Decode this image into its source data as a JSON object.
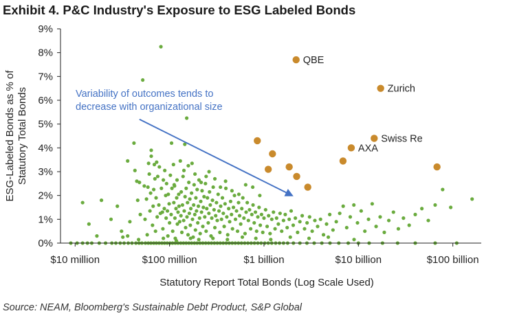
{
  "header": {
    "title": "Exhibit 4. P&C Industry's Exposure to ESG Labeled Bonds"
  },
  "footer": {
    "source": "Source: NEAM, Bloomberg's Sustainable Debt Product, S&P Global"
  },
  "colors": {
    "industry_points": "#6aab3e",
    "named_insurers": "#c98a2c",
    "annotation": "#4472c4",
    "axis": "#222222",
    "text": "#222222"
  },
  "chart_data": {
    "type": "scatter",
    "title": "Exhibit 4. P&C Industry's Exposure to ESG Labeled Bonds",
    "xlabel": "Statutory Report Total Bonds (Log Scale Used)",
    "ylabel": "ESG-Labeled Bonds as % of Statutory Total Bonds",
    "x_scale": "log",
    "xlim": [
      7000000,
      200000000000
    ],
    "ylim": [
      0,
      9
    ],
    "x_ticks": [
      {
        "value": 10000000,
        "label": "$10 million"
      },
      {
        "value": 100000000,
        "label": "$100 million"
      },
      {
        "value": 1000000000,
        "label": "$1 billion"
      },
      {
        "value": 10000000000,
        "label": "$10 billion"
      },
      {
        "value": 100000000000,
        "label": "$100 billion"
      }
    ],
    "y_ticks": [
      {
        "value": 0,
        "label": "0%"
      },
      {
        "value": 1,
        "label": "1%"
      },
      {
        "value": 2,
        "label": "2%"
      },
      {
        "value": 3,
        "label": "3%"
      },
      {
        "value": 4,
        "label": "4%"
      },
      {
        "value": 5,
        "label": "5%"
      },
      {
        "value": 6,
        "label": "6%"
      },
      {
        "value": 7,
        "label": "7%"
      },
      {
        "value": 8,
        "label": "8%"
      },
      {
        "value": 9,
        "label": "9%"
      }
    ],
    "grid": false,
    "annotation": {
      "text_lines": [
        "Variability of outcomes tends to",
        "decrease with organizational size"
      ],
      "arrow_from": {
        "x": 48000000,
        "y": 5.2
      },
      "arrow_to": {
        "x": 1980000000,
        "y": 2.0
      }
    },
    "highlighted": [
      {
        "label": "QBE",
        "x": 2190000000,
        "y": 7.7
      },
      {
        "label": "Zurich",
        "x": 17200000000,
        "y": 6.5
      },
      {
        "label": "Swiss Re",
        "x": 14700000000,
        "y": 4.4
      },
      {
        "label": "AXA",
        "x": 8400000000,
        "y": 4.0
      },
      {
        "label": "",
        "x": 850000000,
        "y": 4.3
      },
      {
        "label": "",
        "x": 1230000000,
        "y": 3.75
      },
      {
        "label": "",
        "x": 1110000000,
        "y": 3.1
      },
      {
        "label": "",
        "x": 1850000000,
        "y": 3.2
      },
      {
        "label": "",
        "x": 2220000000,
        "y": 2.8
      },
      {
        "label": "",
        "x": 2910000000,
        "y": 2.35
      },
      {
        "label": "",
        "x": 6870000000,
        "y": 3.45
      },
      {
        "label": "",
        "x": 68000000000,
        "y": 3.2
      }
    ],
    "industry_points": [
      [
        12000000,
        1.7
      ],
      [
        14000000,
        0.8
      ],
      [
        17000000,
        0.3
      ],
      [
        19000000,
        1.8
      ],
      [
        24000000,
        1.0
      ],
      [
        28000000,
        1.55
      ],
      [
        31000000,
        0.5
      ],
      [
        36000000,
        0.3
      ],
      [
        38000000,
        0.9
      ],
      [
        42000000,
        4.2
      ],
      [
        43000000,
        3.05
      ],
      [
        45000000,
        2.6
      ],
      [
        46000000,
        1.8
      ],
      [
        49000000,
        1.2
      ],
      [
        52000000,
        6.85
      ],
      [
        54000000,
        2.4
      ],
      [
        55000000,
        1.0
      ],
      [
        57000000,
        1.85
      ],
      [
        58000000,
        0.35
      ],
      [
        60000000,
        3.35
      ],
      [
        61000000,
        2.9
      ],
      [
        62000000,
        1.35
      ],
      [
        63000000,
        2.1
      ],
      [
        64000000,
        3.65
      ],
      [
        66000000,
        0.75
      ],
      [
        67000000,
        1.55
      ],
      [
        68000000,
        2.25
      ],
      [
        69000000,
        3.3
      ],
      [
        71000000,
        0.5
      ],
      [
        72000000,
        1.9
      ],
      [
        73000000,
        3.4
      ],
      [
        74000000,
        1.1
      ],
      [
        75000000,
        2.8
      ],
      [
        77000000,
        1.6
      ],
      [
        78000000,
        3.2
      ],
      [
        80000000,
        1.25
      ],
      [
        81000000,
        8.25
      ],
      [
        82000000,
        2.3
      ],
      [
        84000000,
        1.3
      ],
      [
        85000000,
        0.6
      ],
      [
        86000000,
        2.65
      ],
      [
        88000000,
        1.45
      ],
      [
        89000000,
        3.05
      ],
      [
        91000000,
        2.0
      ],
      [
        92000000,
        1.05
      ],
      [
        93000000,
        2.5
      ],
      [
        95000000,
        1.35
      ],
      [
        96000000,
        0.3
      ],
      [
        97000000,
        2.05
      ],
      [
        99000000,
        1.65
      ],
      [
        100000000,
        0.85
      ],
      [
        102000000,
        2.85
      ],
      [
        104000000,
        1.2
      ],
      [
        105000000,
        4.2
      ],
      [
        106000000,
        2.3
      ],
      [
        108000000,
        0.5
      ],
      [
        110000000,
        3.3
      ],
      [
        111000000,
        1.7
      ],
      [
        113000000,
        2.4
      ],
      [
        114000000,
        1.05
      ],
      [
        115000000,
        0.2
      ],
      [
        117000000,
        1.45
      ],
      [
        119000000,
        1.9
      ],
      [
        120000000,
        2.65
      ],
      [
        121000000,
        0.8
      ],
      [
        123000000,
        1.3
      ],
      [
        125000000,
        2.05
      ],
      [
        126000000,
        1.55
      ],
      [
        128000000,
        0.9
      ],
      [
        130000000,
        3.45
      ],
      [
        132000000,
        1.15
      ],
      [
        133000000,
        2.15
      ],
      [
        135000000,
        0.45
      ],
      [
        137000000,
        1.6
      ],
      [
        139000000,
        2.8
      ],
      [
        141000000,
        0.95
      ],
      [
        143000000,
        1.35
      ],
      [
        145000000,
        4.15
      ],
      [
        146000000,
        1.95
      ],
      [
        148000000,
        0.65
      ],
      [
        150000000,
        2.3
      ],
      [
        152000000,
        5.25
      ],
      [
        153000000,
        1.1
      ],
      [
        155000000,
        1.7
      ],
      [
        157000000,
        0.35
      ],
      [
        160000000,
        2.55
      ],
      [
        162000000,
        1.25
      ],
      [
        164000000,
        1.85
      ],
      [
        166000000,
        0.75
      ],
      [
        168000000,
        1.45
      ],
      [
        171000000,
        2.1
      ],
      [
        173000000,
        3.35
      ],
      [
        175000000,
        1.0
      ],
      [
        178000000,
        0.25
      ],
      [
        180000000,
        1.6
      ],
      [
        182000000,
        2.45
      ],
      [
        185000000,
        1.2
      ],
      [
        188000000,
        0.55
      ],
      [
        190000000,
        1.9
      ],
      [
        193000000,
        1.35
      ],
      [
        196000000,
        2.25
      ],
      [
        199000000,
        0.85
      ],
      [
        202000000,
        1.55
      ],
      [
        205000000,
        2.65
      ],
      [
        208000000,
        1.05
      ],
      [
        211000000,
        0.4
      ],
      [
        214000000,
        1.75
      ],
      [
        218000000,
        1.3
      ],
      [
        221000000,
        2.2
      ],
      [
        225000000,
        0.7
      ],
      [
        228000000,
        1.5
      ],
      [
        232000000,
        1.95
      ],
      [
        236000000,
        1.1
      ],
      [
        240000000,
        2.5
      ],
      [
        244000000,
        0.5
      ],
      [
        248000000,
        1.45
      ],
      [
        252000000,
        1.9
      ],
      [
        257000000,
        0.85
      ],
      [
        261000000,
        1.25
      ],
      [
        265000000,
        2.15
      ],
      [
        270000000,
        1.6
      ],
      [
        275000000,
        0.3
      ],
      [
        280000000,
        1.05
      ],
      [
        285000000,
        1.8
      ],
      [
        290000000,
        2.35
      ],
      [
        296000000,
        1.4
      ],
      [
        302000000,
        0.65
      ],
      [
        308000000,
        1.15
      ],
      [
        314000000,
        1.7
      ],
      [
        320000000,
        0.95
      ],
      [
        327000000,
        2.05
      ],
      [
        334000000,
        1.35
      ],
      [
        341000000,
        0.45
      ],
      [
        348000000,
        1.55
      ],
      [
        355000000,
        1.0
      ],
      [
        363000000,
        1.9
      ],
      [
        371000000,
        1.25
      ],
      [
        379000000,
        0.7
      ],
      [
        387000000,
        1.65
      ],
      [
        395000000,
        2.3
      ],
      [
        404000000,
        1.1
      ],
      [
        413000000,
        0.35
      ],
      [
        423000000,
        1.45
      ],
      [
        433000000,
        0.9
      ],
      [
        443000000,
        1.75
      ],
      [
        453000000,
        1.2
      ],
      [
        464000000,
        0.6
      ],
      [
        475000000,
        1.5
      ],
      [
        487000000,
        2.0
      ],
      [
        499000000,
        1.0
      ],
      [
        512000000,
        1.35
      ],
      [
        525000000,
        0.5
      ],
      [
        538000000,
        1.7
      ],
      [
        552000000,
        1.15
      ],
      [
        567000000,
        0.8
      ],
      [
        582000000,
        1.45
      ],
      [
        597000000,
        1.9
      ],
      [
        613000000,
        1.05
      ],
      [
        630000000,
        0.4
      ],
      [
        647000000,
        1.3
      ],
      [
        665000000,
        1.7
      ],
      [
        684000000,
        0.95
      ],
      [
        703000000,
        1.4
      ],
      [
        723000000,
        0.6
      ],
      [
        744000000,
        1.2
      ],
      [
        766000000,
        1.6
      ],
      [
        788000000,
        0.85
      ],
      [
        812000000,
        1.3
      ],
      [
        836000000,
        0.5
      ],
      [
        861000000,
        1.1
      ],
      [
        887000000,
        1.5
      ],
      [
        914000000,
        0.75
      ],
      [
        942000000,
        1.2
      ],
      [
        971000000,
        0.45
      ],
      [
        1000000000,
        1.05
      ],
      [
        1040000000,
        1.4
      ],
      [
        1080000000,
        0.7
      ],
      [
        1120000000,
        1.15
      ],
      [
        1160000000,
        0.4
      ],
      [
        1210000000,
        1.0
      ],
      [
        1260000000,
        1.3
      ],
      [
        1310000000,
        0.6
      ],
      [
        1360000000,
        1.05
      ],
      [
        1420000000,
        0.8
      ],
      [
        1480000000,
        1.25
      ],
      [
        1540000000,
        0.5
      ],
      [
        1610000000,
        0.95
      ],
      [
        1680000000,
        1.2
      ],
      [
        1760000000,
        0.65
      ],
      [
        1850000000,
        1.0
      ],
      [
        1940000000,
        1.35
      ],
      [
        2040000000,
        0.75
      ],
      [
        2150000000,
        1.05
      ],
      [
        2270000000,
        0.45
      ],
      [
        2400000000,
        0.9
      ],
      [
        2540000000,
        1.15
      ],
      [
        2690000000,
        0.6
      ],
      [
        2860000000,
        0.85
      ],
      [
        3040000000,
        1.1
      ],
      [
        3240000000,
        0.5
      ],
      [
        3460000000,
        0.95
      ],
      [
        3700000000,
        0.7
      ],
      [
        3970000000,
        1.0
      ],
      [
        4270000000,
        0.35
      ],
      [
        4600000000,
        0.8
      ],
      [
        4970000000,
        1.2
      ],
      [
        5380000000,
        0.55
      ],
      [
        5830000000,
        0.9
      ],
      [
        6340000000,
        1.25
      ],
      [
        6900000000,
        1.55
      ],
      [
        7520000000,
        0.65
      ],
      [
        8200000000,
        1.1
      ],
      [
        8950000000,
        1.6
      ],
      [
        9780000000,
        0.85
      ],
      [
        10700000000,
        1.35
      ],
      [
        11700000000,
        0.5
      ],
      [
        12800000000,
        1.0
      ],
      [
        14000000000,
        1.65
      ],
      [
        15400000000,
        0.7
      ],
      [
        17000000000,
        1.1
      ],
      [
        18800000000,
        0.45
      ],
      [
        21000000000,
        0.95
      ],
      [
        23500000000,
        1.3
      ],
      [
        26500000000,
        0.6
      ],
      [
        30000000000,
        1.05
      ],
      [
        34500000000,
        0.75
      ],
      [
        40000000000,
        1.2
      ],
      [
        47000000000,
        1.45
      ],
      [
        55000000000,
        0.95
      ],
      [
        65000000000,
        1.6
      ],
      [
        78000000000,
        2.25
      ],
      [
        95000000000,
        1.5
      ],
      [
        160000000000,
        1.85
      ],
      [
        36000000,
        3.45
      ],
      [
        64000000,
        3.9
      ],
      [
        48000000,
        2.55
      ],
      [
        59000000,
        2.35
      ],
      [
        70000000,
        2.7
      ],
      [
        112000000,
        2.45
      ],
      [
        142000000,
        3.05
      ],
      [
        158000000,
        3.25
      ],
      [
        186000000,
        2.9
      ],
      [
        216000000,
        2.55
      ],
      [
        244000000,
        2.8
      ],
      [
        262000000,
        3.0
      ],
      [
        302000000,
        2.7
      ],
      [
        346000000,
        2.35
      ],
      [
        392000000,
        2.6
      ],
      [
        458000000,
        2.2
      ],
      [
        542000000,
        2.05
      ],
      [
        640000000,
        2.45
      ],
      [
        760000000,
        2.35
      ],
      [
        903000000,
        2.0
      ],
      [
        9000000,
        0
      ],
      [
        10500000,
        0
      ],
      [
        12000000,
        0
      ],
      [
        13500000,
        0
      ],
      [
        15000000,
        0
      ],
      [
        18000000,
        0
      ],
      [
        21000000,
        0
      ],
      [
        24500000,
        0
      ],
      [
        27000000,
        0
      ],
      [
        30000000,
        0
      ],
      [
        33000000,
        0
      ],
      [
        36500000,
        0
      ],
      [
        40000000,
        0
      ],
      [
        44000000,
        0
      ],
      [
        47500000,
        0
      ],
      [
        51000000,
        0
      ],
      [
        55500000,
        0
      ],
      [
        59500000,
        0
      ],
      [
        63500000,
        0
      ],
      [
        68000000,
        0
      ],
      [
        72500000,
        0
      ],
      [
        77500000,
        0
      ],
      [
        83000000,
        0
      ],
      [
        88500000,
        0
      ],
      [
        94500000,
        0
      ],
      [
        101000000,
        0
      ],
      [
        107500000,
        0
      ],
      [
        115000000,
        0
      ],
      [
        123000000,
        0
      ],
      [
        131500000,
        0
      ],
      [
        140500000,
        0
      ],
      [
        150000000,
        0
      ],
      [
        160500000,
        0
      ],
      [
        171500000,
        0
      ],
      [
        183500000,
        0
      ],
      [
        196000000,
        0
      ],
      [
        210000000,
        0
      ],
      [
        225000000,
        0
      ],
      [
        241500000,
        0
      ],
      [
        259000000,
        0
      ],
      [
        278000000,
        0
      ],
      [
        298500000,
        0
      ],
      [
        320500000,
        0
      ],
      [
        344000000,
        0
      ],
      [
        370000000,
        0
      ],
      [
        398000000,
        0
      ],
      [
        428000000,
        0
      ],
      [
        461000000,
        0
      ],
      [
        497000000,
        0
      ],
      [
        536000000,
        0
      ],
      [
        578000000,
        0
      ],
      [
        625000000,
        0
      ],
      [
        676000000,
        0
      ],
      [
        732000000,
        0
      ],
      [
        793000000,
        0
      ],
      [
        860000000,
        0
      ],
      [
        934000000,
        0
      ],
      [
        1020000000,
        0
      ],
      [
        1110000000,
        0
      ],
      [
        1210000000,
        0
      ],
      [
        1330000000,
        0
      ],
      [
        1460000000,
        0
      ],
      [
        1610000000,
        0
      ],
      [
        1780000000,
        0
      ],
      [
        2050000000,
        0
      ],
      [
        2400000000,
        0
      ],
      [
        2850000000,
        0
      ],
      [
        3400000000,
        0
      ],
      [
        4100000000,
        0
      ],
      [
        5000000000,
        0
      ],
      [
        6200000000,
        0
      ],
      [
        7800000000,
        0
      ],
      [
        10000000000,
        0
      ],
      [
        13000000000,
        0
      ],
      [
        18000000000,
        0
      ],
      [
        26000000000,
        0
      ],
      [
        40000000000,
        0
      ],
      [
        65000000000,
        0
      ],
      [
        110000000000,
        0
      ],
      [
        32000000,
        0.25
      ],
      [
        47000000,
        0.15
      ],
      [
        86000000,
        0.2
      ],
      [
        118000000,
        0.1
      ],
      [
        167000000,
        0.2
      ],
      [
        204000000,
        0.15
      ],
      [
        288000000,
        0.2
      ],
      [
        410000000,
        0.15
      ],
      [
        590000000,
        0.25
      ],
      [
        820000000,
        0.2
      ],
      [
        1180000000,
        0.15
      ],
      [
        1900000000,
        0.25
      ],
      [
        3000000000,
        0.2
      ],
      [
        4800000000,
        0.25
      ],
      [
        9000000000,
        0.15
      ]
    ]
  }
}
